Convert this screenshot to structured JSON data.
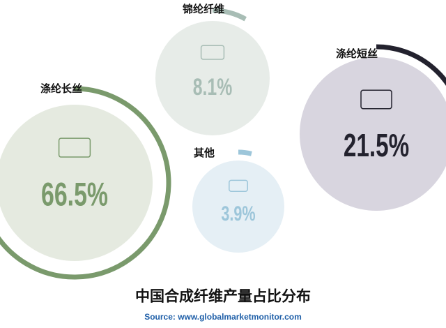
{
  "chart_data": {
    "type": "bubble",
    "title": "中国合成纤维产量占比分布",
    "source": "Source: www.globalmarketmonitor.com",
    "categories": [
      "涤纶长丝",
      "锦纶纤维",
      "涤纶短丝",
      "其他"
    ],
    "values": [
      66.5,
      8.1,
      21.5,
      3.9
    ],
    "value_labels": [
      "66.5%",
      "8.1%",
      "21.5%",
      "3.9%"
    ],
    "colors": [
      "#7a9a6c",
      "#a8bdb5",
      "#23222e",
      "#9dc6da"
    ]
  }
}
